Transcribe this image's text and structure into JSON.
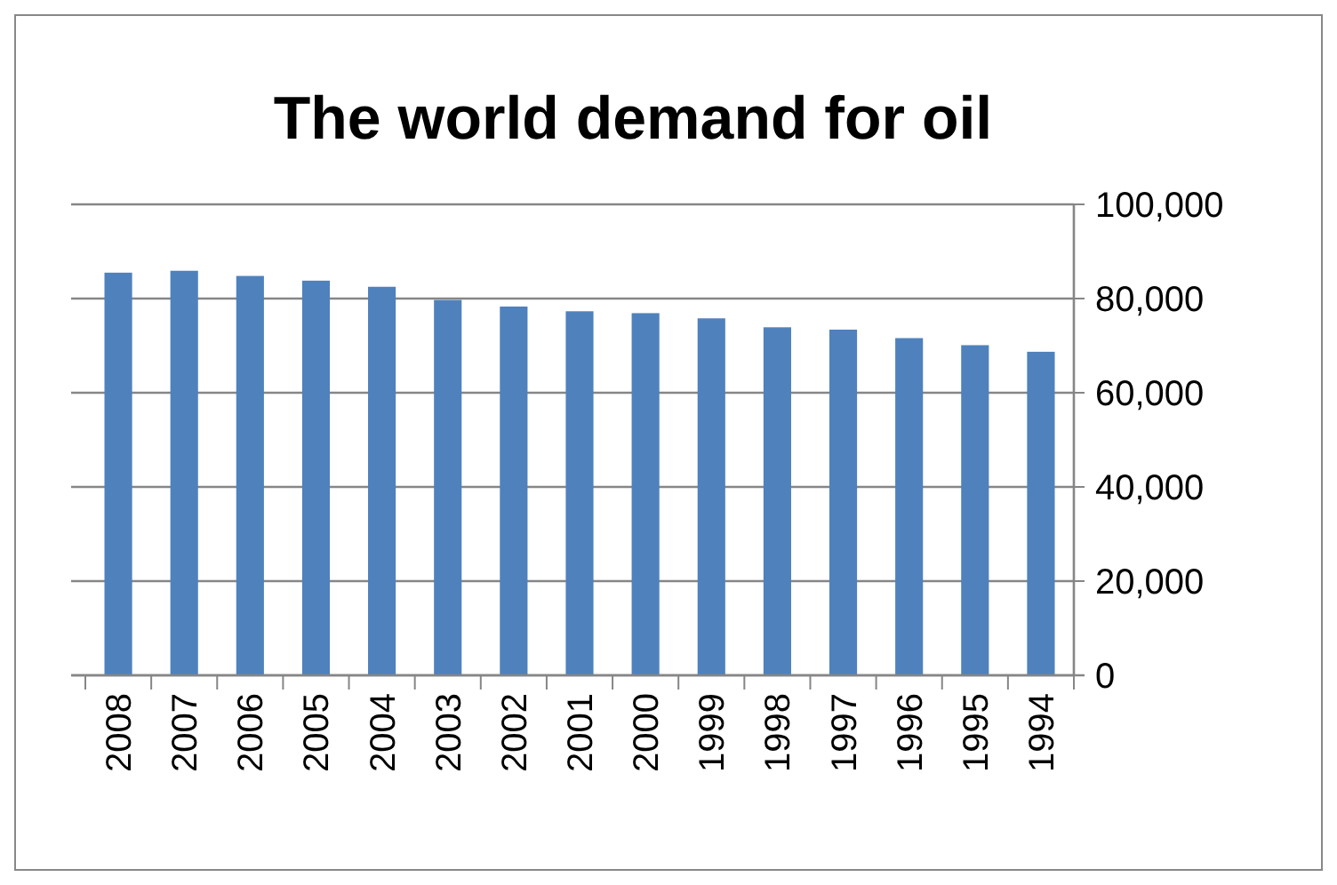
{
  "chart_data": {
    "type": "bar",
    "title": "The world demand for oil",
    "categories": [
      "2008",
      "2007",
      "2006",
      "2005",
      "2004",
      "2003",
      "2002",
      "2001",
      "2000",
      "1999",
      "1998",
      "1997",
      "1996",
      "1995",
      "1994"
    ],
    "values": [
      85500,
      85900,
      84800,
      83800,
      82500,
      79700,
      78300,
      77300,
      76900,
      75800,
      73900,
      73400,
      71600,
      70100,
      68700
    ],
    "color": "#4f81bd",
    "ylim": [
      0,
      100000
    ],
    "yticks": [
      {
        "value": 0,
        "label": "0"
      },
      {
        "value": 20000,
        "label": "20,000"
      },
      {
        "value": 40000,
        "label": "40,000"
      },
      {
        "value": 60000,
        "label": "60,000"
      },
      {
        "value": 80000,
        "label": "80,000"
      },
      {
        "value": 100000,
        "label": "100,000"
      }
    ],
    "grid": true
  }
}
